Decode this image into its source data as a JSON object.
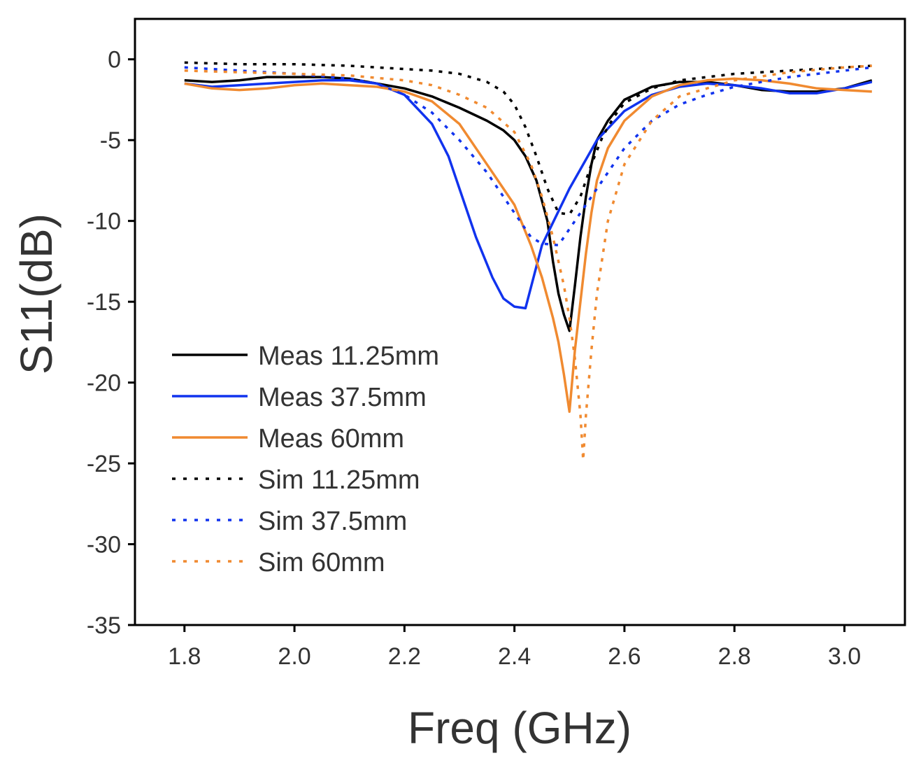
{
  "chart_data": {
    "type": "line",
    "title": "",
    "xlabel": "Freq (GHz)",
    "ylabel": "S11(dB)",
    "xlim": [
      1.71,
      3.11
    ],
    "ylim": [
      -35,
      2.5
    ],
    "xticks": [
      "1.8",
      "2.0",
      "2.2",
      "2.4",
      "2.6",
      "2.8",
      "3.0"
    ],
    "yticks": [
      "0",
      "-5",
      "-10",
      "-15",
      "-20",
      "-25",
      "-30",
      "-35"
    ],
    "legend_position": "lower-left",
    "series": [
      {
        "name": "Meas 11.25mm",
        "color": "#000000",
        "style": "solid",
        "x": [
          1.8,
          1.85,
          1.9,
          1.95,
          2.0,
          2.05,
          2.1,
          2.15,
          2.2,
          2.25,
          2.3,
          2.35,
          2.38,
          2.4,
          2.42,
          2.44,
          2.46,
          2.47,
          2.48,
          2.49,
          2.5,
          2.51,
          2.52,
          2.53,
          2.54,
          2.55,
          2.57,
          2.6,
          2.65,
          2.7,
          2.75,
          2.8,
          2.85,
          2.9,
          2.95,
          3.0,
          3.05
        ],
        "y": [
          -1.3,
          -1.4,
          -1.3,
          -1.1,
          -1.1,
          -1.1,
          -1.2,
          -1.5,
          -1.8,
          -2.3,
          -3.0,
          -3.8,
          -4.4,
          -5.0,
          -6.0,
          -7.5,
          -10.0,
          -12.5,
          -14.5,
          -15.8,
          -16.8,
          -14.0,
          -11.0,
          -8.5,
          -6.5,
          -5.0,
          -3.8,
          -2.5,
          -1.7,
          -1.4,
          -1.4,
          -1.6,
          -1.9,
          -2.0,
          -2.0,
          -1.8,
          -1.3
        ]
      },
      {
        "name": "Meas 37.5mm",
        "color": "#1133ee",
        "style": "solid",
        "x": [
          1.8,
          1.85,
          1.9,
          1.95,
          2.0,
          2.05,
          2.1,
          2.15,
          2.2,
          2.25,
          2.28,
          2.3,
          2.33,
          2.36,
          2.38,
          2.4,
          2.42,
          2.45,
          2.5,
          2.55,
          2.6,
          2.65,
          2.7,
          2.75,
          2.8,
          2.85,
          2.9,
          2.95,
          3.0,
          3.05
        ],
        "y": [
          -1.5,
          -1.7,
          -1.6,
          -1.5,
          -1.4,
          -1.3,
          -1.3,
          -1.5,
          -2.2,
          -4.0,
          -6.0,
          -8.0,
          -11.0,
          -13.5,
          -14.8,
          -15.3,
          -15.4,
          -11.5,
          -8.0,
          -5.0,
          -3.2,
          -2.2,
          -1.7,
          -1.5,
          -1.6,
          -1.8,
          -2.1,
          -2.1,
          -1.8,
          -1.4
        ]
      },
      {
        "name": "Meas 60mm",
        "color": "#f08a30",
        "style": "solid",
        "x": [
          1.8,
          1.85,
          1.9,
          1.95,
          2.0,
          2.05,
          2.1,
          2.15,
          2.2,
          2.25,
          2.3,
          2.35,
          2.4,
          2.43,
          2.45,
          2.47,
          2.48,
          2.49,
          2.5,
          2.51,
          2.52,
          2.53,
          2.54,
          2.55,
          2.57,
          2.6,
          2.65,
          2.7,
          2.75,
          2.8,
          2.85,
          2.9,
          2.95,
          3.0,
          3.05
        ],
        "y": [
          -1.5,
          -1.8,
          -1.9,
          -1.8,
          -1.6,
          -1.5,
          -1.6,
          -1.7,
          -2.0,
          -2.6,
          -4.0,
          -6.5,
          -9.0,
          -11.5,
          -13.5,
          -16.0,
          -17.5,
          -19.5,
          -21.8,
          -18.0,
          -15.0,
          -12.0,
          -9.5,
          -7.5,
          -5.5,
          -3.8,
          -2.3,
          -1.6,
          -1.3,
          -1.2,
          -1.3,
          -1.5,
          -1.8,
          -1.9,
          -2.0
        ]
      },
      {
        "name": "Sim 11.25mm",
        "color": "#000000",
        "style": "dotted",
        "x": [
          1.8,
          1.9,
          2.0,
          2.1,
          2.15,
          2.2,
          2.25,
          2.3,
          2.35,
          2.38,
          2.4,
          2.42,
          2.44,
          2.46,
          2.48,
          2.5,
          2.52,
          2.54,
          2.56,
          2.58,
          2.6,
          2.65,
          2.7,
          2.8,
          2.9,
          3.0,
          3.05
        ],
        "y": [
          -0.2,
          -0.3,
          -0.3,
          -0.4,
          -0.5,
          -0.6,
          -0.7,
          -0.9,
          -1.4,
          -2.0,
          -2.8,
          -4.2,
          -6.0,
          -8.0,
          -9.5,
          -9.6,
          -8.5,
          -6.5,
          -4.8,
          -3.6,
          -2.7,
          -1.8,
          -1.3,
          -0.9,
          -0.7,
          -0.5,
          -0.4
        ]
      },
      {
        "name": "Sim 37.5mm",
        "color": "#1133ee",
        "style": "dotted",
        "x": [
          1.8,
          1.9,
          2.0,
          2.1,
          2.15,
          2.2,
          2.25,
          2.3,
          2.35,
          2.4,
          2.43,
          2.45,
          2.48,
          2.5,
          2.52,
          2.55,
          2.58,
          2.6,
          2.65,
          2.7,
          2.75,
          2.8,
          2.9,
          3.0,
          3.05
        ],
        "y": [
          -0.5,
          -0.7,
          -0.9,
          -1.2,
          -1.5,
          -2.2,
          -3.3,
          -5.0,
          -7.0,
          -9.5,
          -11.0,
          -11.4,
          -11.5,
          -10.5,
          -9.5,
          -8.0,
          -6.5,
          -5.5,
          -3.8,
          -2.8,
          -2.2,
          -1.7,
          -1.1,
          -0.7,
          -0.5
        ]
      },
      {
        "name": "Sim 60mm",
        "color": "#f08a30",
        "style": "dotted",
        "x": [
          1.8,
          1.9,
          2.0,
          2.1,
          2.2,
          2.25,
          2.3,
          2.35,
          2.4,
          2.43,
          2.45,
          2.47,
          2.49,
          2.5,
          2.51,
          2.52,
          2.525,
          2.53,
          2.54,
          2.55,
          2.57,
          2.6,
          2.65,
          2.7,
          2.8,
          2.9,
          3.0,
          3.05
        ],
        "y": [
          -0.7,
          -0.8,
          -0.9,
          -1.0,
          -1.3,
          -1.6,
          -2.2,
          -3.0,
          -4.5,
          -6.5,
          -8.5,
          -11.0,
          -14.0,
          -16.0,
          -18.5,
          -22.0,
          -24.8,
          -22.0,
          -18.0,
          -14.5,
          -10.0,
          -6.5,
          -3.8,
          -2.3,
          -1.3,
          -0.8,
          -0.5,
          -0.4
        ]
      }
    ]
  }
}
